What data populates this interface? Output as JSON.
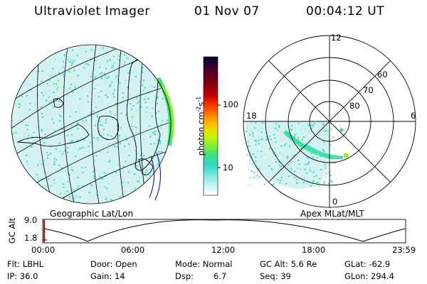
{
  "header": {
    "instrument": "Ultraviolet Imager",
    "date": "01 Nov 07",
    "time": "00:04:12 UT"
  },
  "left_panel": {
    "caption": "Geographic Lat/Lon"
  },
  "right_panel": {
    "caption": "Apex MLat/MLT",
    "mlt_labels": {
      "top": "12",
      "left": "18",
      "right": "6",
      "bottom": "0"
    },
    "lat_labels": [
      "60",
      "70",
      "80"
    ]
  },
  "colorbar": {
    "unit_label": "photon cm",
    "unit_exp1": "-2",
    "unit_mid": "s",
    "unit_exp2": "-1",
    "ticks": [
      "100",
      "10"
    ],
    "colors": [
      "#000020",
      "#3a0030",
      "#7a0010",
      "#c40000",
      "#ff4000",
      "#ff9400",
      "#ffc800",
      "#d8f000",
      "#90ef2a",
      "#40e070",
      "#30d8c8",
      "#7ee8e0",
      "#c8f4f4",
      "#ffffff"
    ]
  },
  "altitude_strip": {
    "label": "GC Alt",
    "y_ticks": [
      "9.0",
      "1.8"
    ],
    "x_ticks": [
      "00:00",
      "06:00",
      "12:00",
      "18:00",
      "23:59"
    ]
  },
  "info": {
    "flt": "Flt: LBHL",
    "ip": "IP: 36.0",
    "door": "Door: Open",
    "gain": "Gain: 14",
    "mode": "Mode: Normal",
    "dsp_label": "Dsp:",
    "dsp_value": "6.7",
    "gc_alt": "GC Alt: 5.6 Re",
    "seq": "Seq: 39",
    "glat": "GLat: -62.9",
    "glon": "GLon: 294.4"
  }
}
